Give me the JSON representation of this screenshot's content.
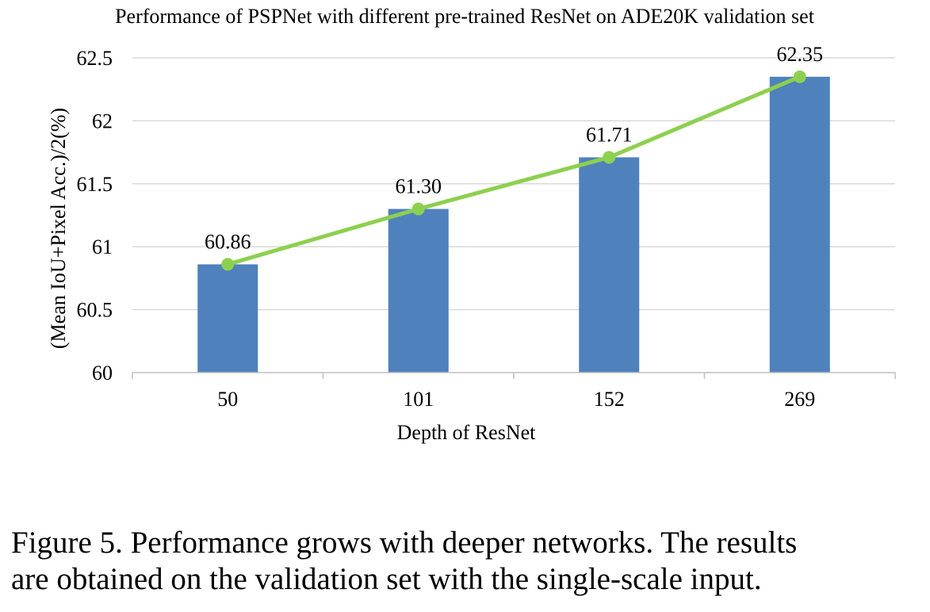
{
  "chart_data": {
    "type": "bar",
    "title": "Performance of PSPNet with different pre-trained ResNet on ADE20K validation set",
    "xlabel": "Depth of ResNet",
    "ylabel": "(Mean IoU+Pixel Acc.)/2(%)",
    "categories": [
      "50",
      "101",
      "152",
      "269"
    ],
    "values": [
      60.86,
      61.3,
      61.71,
      62.35
    ],
    "data_labels": [
      "60.86",
      "61.30",
      "61.71",
      "62.35"
    ],
    "ylim": [
      60,
      62.5
    ],
    "yticks": [
      60,
      60.5,
      61,
      61.5,
      62,
      62.5
    ],
    "ytick_labels": [
      "60",
      "60.5",
      "61",
      "61.5",
      "62",
      "62.5"
    ],
    "grid": true,
    "overlay_line": true,
    "colors": {
      "bar": "#4F81BD",
      "line": "#8DD04F",
      "grid": "#D9D9D9",
      "axis": "#BFBFBF"
    }
  },
  "caption": {
    "line1": "Figure 5. Performance grows with deeper networks.  The results",
    "line2": "are obtained on the validation set with the single-scale input."
  }
}
